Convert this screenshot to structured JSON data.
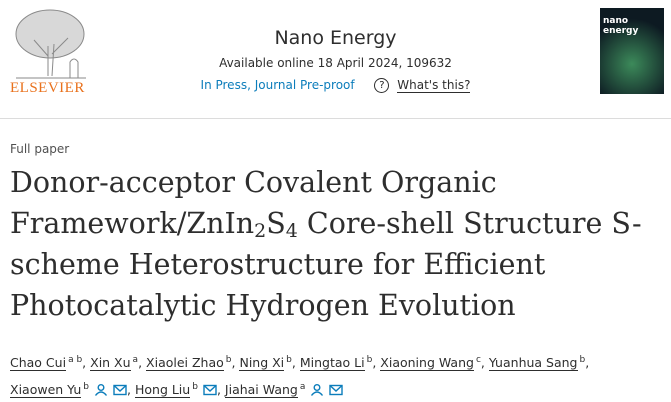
{
  "header": {
    "publisher": "ELSEVIER",
    "journal": "Nano Energy",
    "availability": "Available online 18 April 2024, 109632",
    "status": "In Press, Journal Pre-proof",
    "help": "What's this?",
    "cover_title": "nano energy"
  },
  "article": {
    "type": "Full paper",
    "title": [
      {
        "text": "Donor-acceptor Covalent Organic Framework/ZnIn",
        "sub": false
      },
      {
        "text": "2",
        "sub": true
      },
      {
        "text": "S",
        "sub": false
      },
      {
        "text": "4",
        "sub": true
      },
      {
        "text": " Core-shell Structure S-scheme Heterostructure for Efficient Photocatalytic Hydrogen Evolution",
        "sub": false
      }
    ],
    "separator": ",",
    "authors": [
      {
        "name": "Chao Cui",
        "sup": "a b",
        "person": false,
        "mail": false
      },
      {
        "name": "Xin Xu",
        "sup": "a",
        "person": false,
        "mail": false
      },
      {
        "name": "Xiaolei Zhao",
        "sup": "b",
        "person": false,
        "mail": false
      },
      {
        "name": "Ning Xi",
        "sup": "b",
        "person": false,
        "mail": false
      },
      {
        "name": "Mingtao Li",
        "sup": "b",
        "person": false,
        "mail": false
      },
      {
        "name": "Xiaoning Wang",
        "sup": "c",
        "person": false,
        "mail": false
      },
      {
        "name": "Yuanhua Sang",
        "sup": "b",
        "person": false,
        "mail": false
      },
      {
        "name": "Xiaowen Yu",
        "sup": "b",
        "person": true,
        "mail": true
      },
      {
        "name": "Hong Liu",
        "sup": "b",
        "person": false,
        "mail": true
      },
      {
        "name": "Jiahai Wang",
        "sup": "a",
        "person": true,
        "mail": true
      }
    ]
  }
}
